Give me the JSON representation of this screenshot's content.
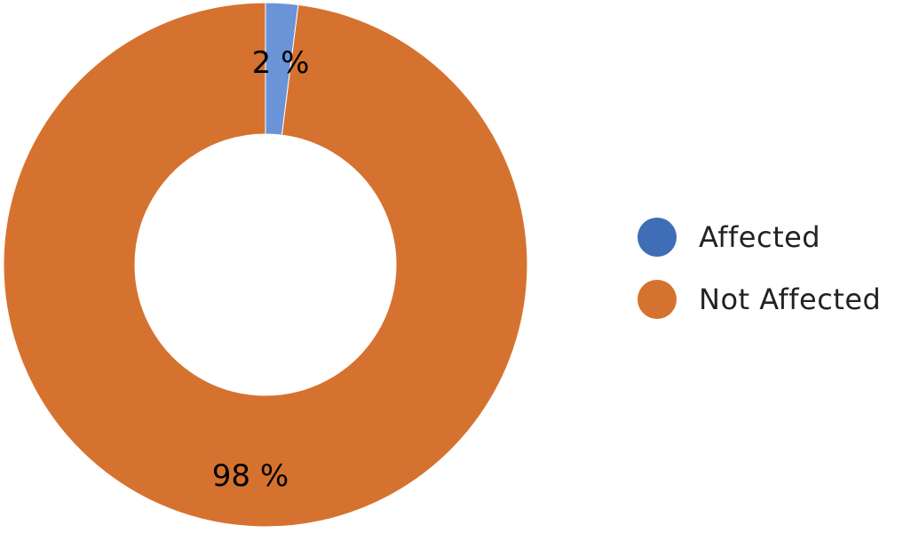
{
  "chart_data": {
    "type": "pie",
    "variant": "donut",
    "title": "",
    "categories": [
      "Affected",
      "Not Affected"
    ],
    "values": [
      2,
      98
    ],
    "data_labels": [
      "2 %",
      "98 %"
    ],
    "colors": [
      "#6a93d8",
      "#d6722f"
    ],
    "legend_colors": [
      "#3f6db6",
      "#d6722f"
    ],
    "legend": {
      "position": "right",
      "items": [
        "Affected",
        "Not Affected"
      ]
    }
  }
}
